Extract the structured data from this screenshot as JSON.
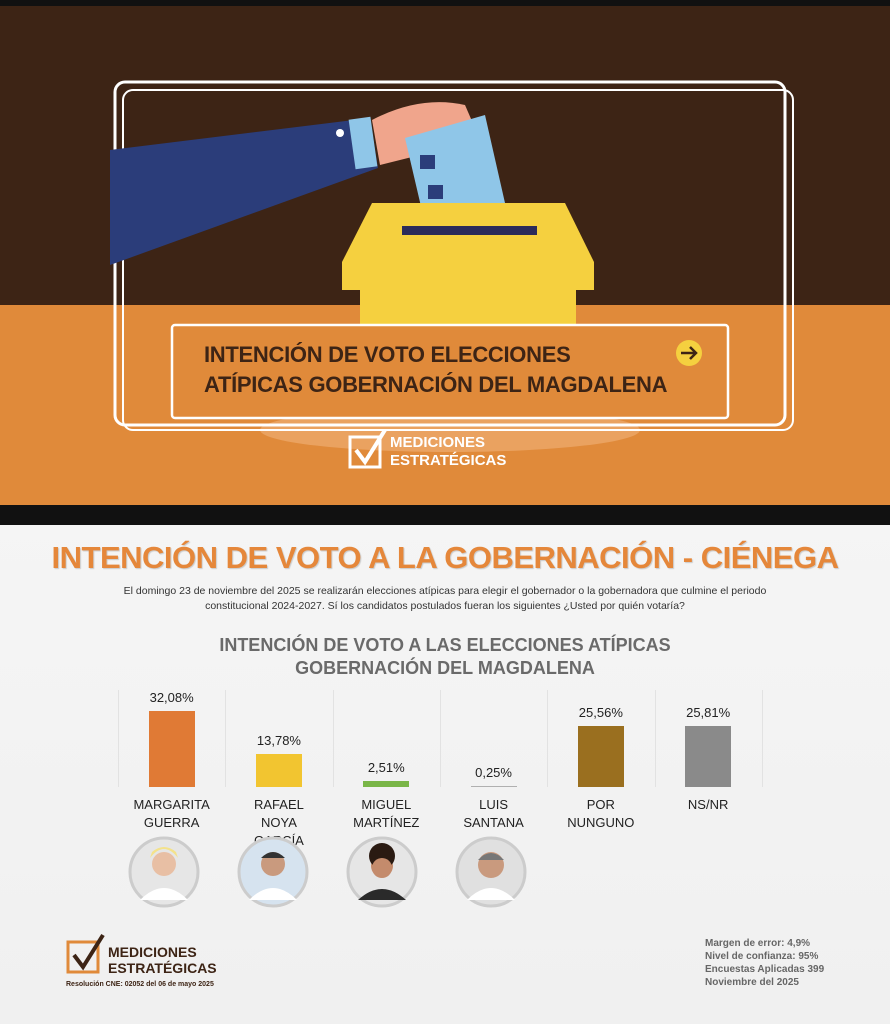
{
  "banner": {
    "title": [
      "INTENCIÓN DE VOTO ELECCIONES",
      "ATÍPICAS GOBERNACIÓN DEL MAGDALENA"
    ],
    "logo": [
      "MEDICIONES",
      "ESTRATÉGICAS"
    ]
  },
  "header": {
    "title": "INTENCIÓN DE VOTO A LA GOBERNACIÓN - CIÉNEGA",
    "description": "El domingo 23 de noviembre del 2025 se realizarán elecciones atípicas para elegir el gobernador o la gobernadora que culmine el periodo constitucional 2024-2027. Sí los candidatos postulados fueran los siguientes ¿Usted por quién votaría?"
  },
  "chart_data": {
    "type": "bar",
    "title": [
      "INTENCIÓN DE VOTO A LAS ELECCIONES ATÍPICAS",
      "GOBERNACIÓN DEL MAGDALENA"
    ],
    "categories": [
      "MARGARITA GUERRA",
      "RAFAEL NOYA GARCÍA",
      "MIGUEL MARTÍNEZ",
      "LUIS SANTANA",
      "POR NUNGUNO",
      "NS/NR"
    ],
    "values": [
      32.08,
      13.78,
      2.51,
      0.25,
      25.56,
      25.81
    ],
    "value_labels": [
      "32,08%",
      "13,78%",
      "2,51%",
      "0,25%",
      "25,56%",
      "25,81%"
    ],
    "colors": [
      "#e07a35",
      "#f2c530",
      "#7ab648",
      "#b0b0b0",
      "#9a6f1f",
      "#8a8a8a"
    ]
  },
  "footer": {
    "logo": [
      "MEDICIONES",
      "ESTRATÉGICAS"
    ],
    "resolution": "Resolución CNE: 02052 del 06 de mayo 2025",
    "notes": [
      "Margen de error: 4,9%",
      "Nivel de confianza: 95%",
      "Encuestas Aplicadas 399",
      "Noviembre del 2025"
    ]
  }
}
